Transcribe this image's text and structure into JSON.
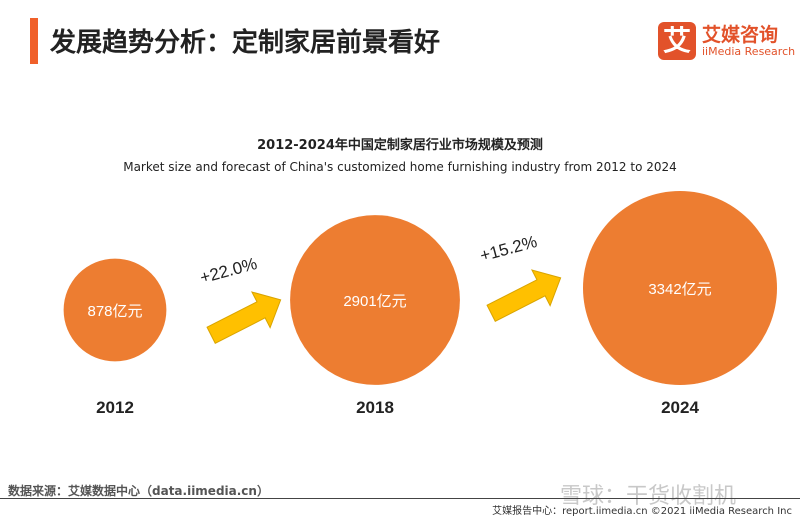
{
  "header": {
    "title": "发展趋势分析：定制家居前景看好"
  },
  "logo": {
    "icon_text": "艾",
    "name_cn": "艾媒咨询",
    "name_en": "iiMedia Research"
  },
  "chart_data": {
    "type": "bubble",
    "title": "2012-2024年中国定制家居行业市场规模及预测",
    "subtitle": "Market size and forecast of China's customized home furnishing industry from 2012 to 2024",
    "categories": [
      "2012",
      "2018",
      "2024"
    ],
    "values": [
      878,
      2901,
      3342
    ],
    "value_labels": [
      "878亿元",
      "2901亿元",
      "3342亿元"
    ],
    "growth_labels": [
      "+22.0%",
      "+15.2%"
    ],
    "colors": {
      "bubble": "#ed7d31",
      "arrow": "#ffc000"
    }
  },
  "footer": {
    "source": "数据来源：艾媒数据中心（data.iimedia.cn）",
    "copyright": "艾媒报告中心：report.iimedia.cn ©2021 iiMedia Research Inc",
    "watermark": "雪球：干货收割机"
  }
}
